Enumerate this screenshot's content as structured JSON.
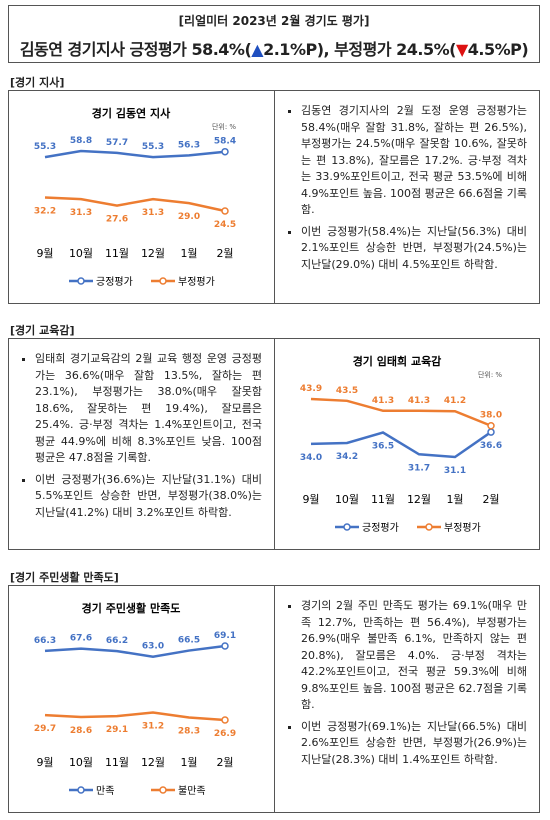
{
  "header": {
    "kicker": "[리얼미터 2023년 2월 경기도 평가]",
    "title_parts": [
      "김동연 경기지사 긍정평가 58.4%(",
      "▲",
      "2.1%P), 부정평가 24.5%(",
      "▼",
      "4.5%P)"
    ]
  },
  "sections": [
    {
      "heading": "[경기 지사]",
      "bullets": [
        "김동연 경기지사의 2월 도정 운영 긍정평가는 58.4%(매우 잘함 31.8%, 잘하는 편 26.5%), 부정평가는 24.5%(매우 잘못함 10.6%, 잘못하는 편 13.8%), 잘모름은 17.2%. 긍·부정 격차는 33.9%포인트이고, 전국 평균 53.5%에 비해 4.9%포인트 높음. 100점 평균은 66.6점을 기록함.",
        "이번 긍정평가(58.4%)는 지난달(56.3%) 대비 2.1%포인트 상승한 반면, 부정평가(24.5%)는 지난달(29.0%) 대비 4.5%포인트 하락함."
      ]
    },
    {
      "heading": "[경기 교육감]",
      "bullets": [
        "임태희 경기교육감의 2월 교육 행정 운영 긍정평가는 36.6%(매우 잘함 13.5%, 잘하는 편 23.1%), 부정평가는 38.0%(매우 잘못함 18.6%, 잘못하는 편 19.4%), 잘모름은 25.4%. 긍·부정 격차는 1.4%포인트이고, 전국 평균 44.9%에 비해 8.3%포인트 낮음. 100점 평균은 47.8점을 기록함.",
        "이번 긍정평가(36.6%)는 지난달(31.1%) 대비 5.5%포인트 상승한 반면, 부정평가(38.0%)는 지난달(41.2%) 대비 3.2%포인트 하락함."
      ]
    },
    {
      "heading": "[경기 주민생활 만족도]",
      "bullets": [
        "경기의 2월 주민 만족도 평가는 69.1%(매우 만족 12.7%, 만족하는 편 56.4%), 부정평가는 26.9%(매우 불만족 6.1%, 만족하지 않는 편 20.8%), 잘모름은 4.0%. 긍·부정 격차는 42.2%포인트이고, 전국 평균 59.3%에 비해 9.8%포인트 높음. 100점 평균은 62.7점을 기록함.",
        "이번 긍정평가(69.1%)는 지난달(66.5%) 대비 2.6%포인트 상승한 반면, 부정평가(26.9%)는 지난달(28.3%) 대비 1.4%포인트 하락함."
      ]
    }
  ],
  "chart_data": [
    {
      "type": "line",
      "title": "경기 김동연 지사",
      "unit": "단위: %",
      "categories": [
        "9월",
        "10월",
        "11월",
        "12월",
        "1월",
        "2월"
      ],
      "series": [
        {
          "name": "긍정평가",
          "color": "#4472c4",
          "values": [
            55.3,
            58.8,
            57.7,
            55.3,
            56.3,
            58.4
          ]
        },
        {
          "name": "부정평가",
          "color": "#ed7d31",
          "values": [
            32.2,
            31.3,
            27.6,
            31.3,
            29.0,
            24.5
          ],
          "value_labels": [
            "32.2",
            "31.3",
            "27.6",
            "31.3",
            "29.0",
            "24.5"
          ]
        }
      ]
    },
    {
      "type": "line",
      "title": "경기 임태희 교육감",
      "unit": "단위: %",
      "categories": [
        "9월",
        "10월",
        "11월",
        "12월",
        "1월",
        "2월"
      ],
      "series": [
        {
          "name": "긍정평가",
          "color": "#4472c4",
          "values": [
            34.0,
            34.2,
            36.5,
            31.7,
            31.1,
            36.6
          ],
          "value_labels": [
            "34.0",
            "34.2",
            "36.5",
            "31.7",
            "31.1",
            "36.6"
          ]
        },
        {
          "name": "부정평가",
          "color": "#ed7d31",
          "values": [
            43.9,
            43.5,
            41.3,
            41.3,
            41.2,
            38.0
          ],
          "value_labels": [
            "43.9",
            "43.5",
            "41.3",
            "41.3",
            "41.2",
            "38.0"
          ]
        }
      ]
    },
    {
      "type": "line",
      "title": "경기 주민생활 만족도",
      "categories": [
        "9월",
        "10월",
        "11월",
        "12월",
        "1월",
        "2월"
      ],
      "series": [
        {
          "name": "만족",
          "color": "#4472c4",
          "values": [
            66.3,
            67.6,
            66.2,
            63.0,
            66.5,
            69.1
          ],
          "value_labels": [
            "66.3",
            "67.6",
            "66.2",
            "63.0",
            "66.5",
            "69.1"
          ]
        },
        {
          "name": "불만족",
          "color": "#ed7d31",
          "values": [
            29.7,
            28.6,
            29.1,
            31.2,
            28.3,
            26.9
          ]
        }
      ]
    }
  ]
}
